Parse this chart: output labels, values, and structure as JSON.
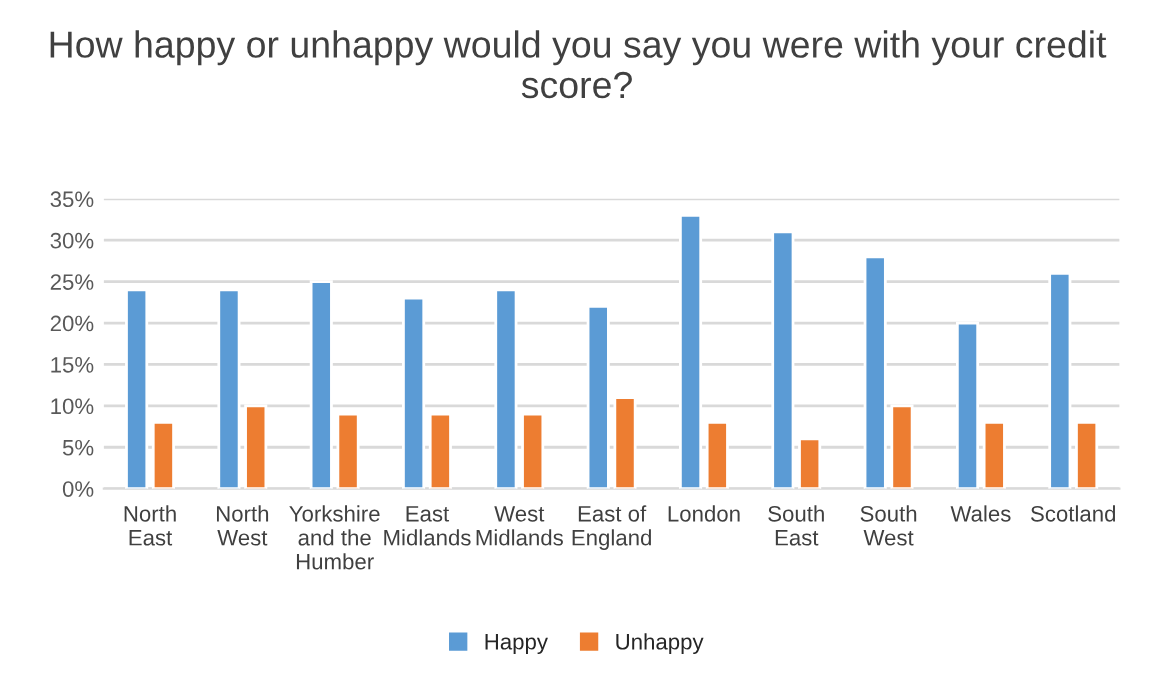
{
  "chart_data": {
    "type": "bar",
    "title": "How happy or unhappy would you say you were with your credit score?",
    "categories": [
      "North\nEast",
      "North\nWest",
      "Yorkshire\nand the\nHumber",
      "East\nMidlands",
      "West\nMidlands",
      "East of\nEngland",
      "London",
      "South\nEast",
      "South\nWest",
      "Wales",
      "Scotland"
    ],
    "series": [
      {
        "name": "Happy",
        "color": "#5b9bd5",
        "values": [
          24,
          24,
          25,
          23,
          24,
          22,
          33,
          31,
          28,
          20,
          26
        ]
      },
      {
        "name": "Unhappy",
        "color": "#ed7d31",
        "values": [
          8,
          10,
          9,
          9,
          9,
          11,
          8,
          6,
          10,
          8,
          8
        ]
      }
    ],
    "ylim": [
      0,
      35
    ],
    "yticks": [
      {
        "value": 0,
        "label": "0%"
      },
      {
        "value": 5,
        "label": "5%"
      },
      {
        "value": 10,
        "label": "10%"
      },
      {
        "value": 15,
        "label": "15%"
      },
      {
        "value": 20,
        "label": "20%"
      },
      {
        "value": 25,
        "label": "25%"
      },
      {
        "value": 30,
        "label": "30%"
      },
      {
        "value": 35,
        "label": "35%"
      }
    ],
    "grid": "y",
    "legend": "bottom"
  }
}
